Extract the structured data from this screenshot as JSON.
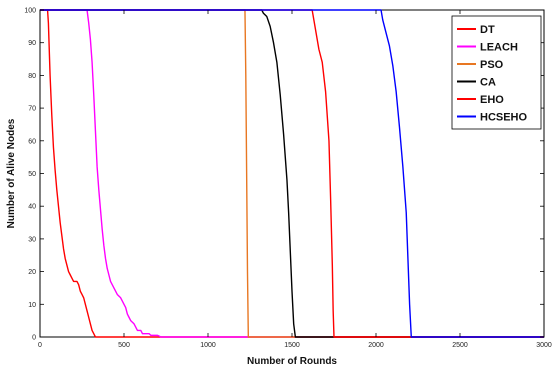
{
  "chart_data": {
    "type": "line",
    "title": "",
    "xlabel": "Number of Rounds",
    "ylabel": "Number of Alive Nodes",
    "xlim": [
      0,
      3000
    ],
    "ylim": [
      0,
      100
    ],
    "x_ticks": [
      0,
      500,
      1000,
      1500,
      2000,
      2500,
      3000
    ],
    "y_ticks": [
      0,
      10,
      20,
      30,
      40,
      50,
      60,
      70,
      80,
      90,
      100
    ],
    "grid": false,
    "legend_position": "top-right",
    "series": [
      {
        "name": "DT",
        "color": "#ff0000",
        "points": [
          [
            0,
            100
          ],
          [
            45,
            100
          ],
          [
            50,
            96
          ],
          [
            60,
            80
          ],
          [
            70,
            68
          ],
          [
            80,
            58
          ],
          [
            90,
            51
          ],
          [
            100,
            45
          ],
          [
            110,
            40
          ],
          [
            120,
            35
          ],
          [
            130,
            31
          ],
          [
            140,
            27
          ],
          [
            150,
            24
          ],
          [
            160,
            22
          ],
          [
            170,
            20
          ],
          [
            180,
            19
          ],
          [
            190,
            18
          ],
          [
            200,
            17
          ],
          [
            220,
            17
          ],
          [
            230,
            16
          ],
          [
            240,
            14
          ],
          [
            250,
            13
          ],
          [
            260,
            12
          ],
          [
            270,
            10
          ],
          [
            280,
            8
          ],
          [
            290,
            6
          ],
          [
            300,
            4
          ],
          [
            310,
            2
          ],
          [
            320,
            1
          ],
          [
            330,
            0
          ],
          [
            3000,
            0
          ]
        ]
      },
      {
        "name": "LEACH",
        "color": "#ff00ff",
        "points": [
          [
            0,
            100
          ],
          [
            280,
            100
          ],
          [
            290,
            96
          ],
          [
            300,
            91
          ],
          [
            310,
            84
          ],
          [
            320,
            74
          ],
          [
            330,
            63
          ],
          [
            340,
            52
          ],
          [
            350,
            45
          ],
          [
            360,
            39
          ],
          [
            370,
            33
          ],
          [
            380,
            28
          ],
          [
            390,
            24
          ],
          [
            400,
            21
          ],
          [
            410,
            19
          ],
          [
            420,
            17
          ],
          [
            430,
            16
          ],
          [
            440,
            15
          ],
          [
            450,
            14
          ],
          [
            460,
            13
          ],
          [
            480,
            12
          ],
          [
            490,
            11
          ],
          [
            500,
            10
          ],
          [
            510,
            9
          ],
          [
            520,
            7
          ],
          [
            530,
            6
          ],
          [
            540,
            5
          ],
          [
            560,
            4
          ],
          [
            570,
            3
          ],
          [
            580,
            2
          ],
          [
            600,
            2
          ],
          [
            610,
            1
          ],
          [
            650,
            1
          ],
          [
            660,
            0.5
          ],
          [
            700,
            0.5
          ],
          [
            720,
            0
          ],
          [
            3000,
            0
          ]
        ]
      },
      {
        "name": "PSO",
        "color": "#e87722",
        "points": [
          [
            0,
            100
          ],
          [
            1220,
            100
          ],
          [
            1225,
            80
          ],
          [
            1230,
            50
          ],
          [
            1235,
            20
          ],
          [
            1240,
            0
          ],
          [
            3000,
            0
          ]
        ]
      },
      {
        "name": "CA",
        "color": "#000000",
        "points": [
          [
            0,
            100
          ],
          [
            1320,
            100
          ],
          [
            1330,
            99
          ],
          [
            1350,
            98
          ],
          [
            1370,
            95
          ],
          [
            1390,
            90
          ],
          [
            1410,
            84
          ],
          [
            1430,
            74
          ],
          [
            1450,
            62
          ],
          [
            1470,
            48
          ],
          [
            1480,
            38
          ],
          [
            1490,
            26
          ],
          [
            1500,
            14
          ],
          [
            1510,
            4
          ],
          [
            1520,
            0
          ],
          [
            3000,
            0
          ]
        ]
      },
      {
        "name": "EHO",
        "color": "#ff0000",
        "points": [
          [
            0,
            100
          ],
          [
            1620,
            100
          ],
          [
            1640,
            94
          ],
          [
            1660,
            88
          ],
          [
            1680,
            84
          ],
          [
            1700,
            75
          ],
          [
            1720,
            60
          ],
          [
            1730,
            42
          ],
          [
            1740,
            22
          ],
          [
            1745,
            8
          ],
          [
            1750,
            0
          ],
          [
            3000,
            0
          ]
        ]
      },
      {
        "name": "HCSEHO",
        "color": "#0000ff",
        "points": [
          [
            0,
            100
          ],
          [
            2030,
            100
          ],
          [
            2040,
            97
          ],
          [
            2060,
            93
          ],
          [
            2080,
            89
          ],
          [
            2100,
            83
          ],
          [
            2120,
            75
          ],
          [
            2140,
            64
          ],
          [
            2160,
            52
          ],
          [
            2180,
            38
          ],
          [
            2190,
            24
          ],
          [
            2200,
            10
          ],
          [
            2210,
            0
          ],
          [
            3000,
            0
          ]
        ]
      }
    ]
  }
}
